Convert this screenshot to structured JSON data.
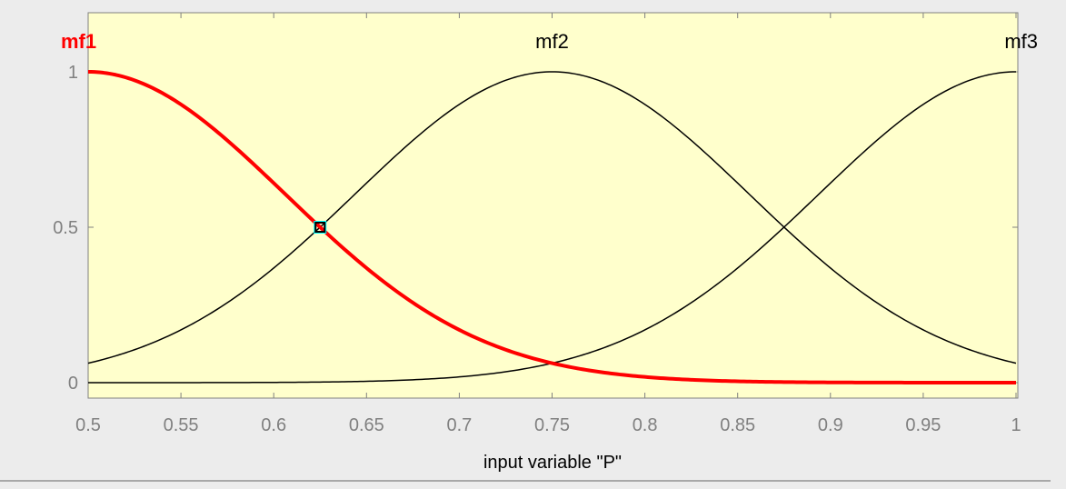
{
  "chart_data": {
    "type": "line",
    "xlabel": "input variable \"P\"",
    "xlim": [
      0.5,
      1
    ],
    "ylim": [
      0,
      1
    ],
    "x_ticks": [
      "0.5",
      "0.55",
      "0.6",
      "0.65",
      "0.7",
      "0.75",
      "0.8",
      "0.85",
      "0.9",
      "0.95",
      "1"
    ],
    "y_ticks": [
      "0",
      "0.5",
      "1"
    ],
    "grid": false,
    "background_color": "#ffffcc",
    "series": [
      {
        "name": "mf1",
        "shape": "gaussian",
        "center": 0.5,
        "sigma": 0.1062,
        "x": [
          0.5,
          0.55,
          0.6,
          0.625,
          0.65,
          0.7,
          0.75,
          0.8,
          0.85,
          0.9,
          0.95,
          1.0
        ],
        "values": [
          1.0,
          0.895,
          0.641,
          0.5,
          0.369,
          0.171,
          0.0625,
          0.018,
          0.004,
          0.0008,
          0.0001,
          0.0
        ],
        "color": "#ff0000",
        "selected": true
      },
      {
        "name": "mf2",
        "shape": "gaussian",
        "center": 0.75,
        "sigma": 0.1062,
        "x": [
          0.5,
          0.55,
          0.6,
          0.625,
          0.65,
          0.7,
          0.75,
          0.8,
          0.85,
          0.9,
          0.95,
          1.0
        ],
        "values": [
          0.0625,
          0.171,
          0.369,
          0.5,
          0.641,
          0.895,
          1.0,
          0.895,
          0.641,
          0.369,
          0.171,
          0.0625
        ],
        "color": "#000000",
        "selected": false
      },
      {
        "name": "mf3",
        "shape": "gaussian",
        "center": 1.0,
        "sigma": 0.1062,
        "x": [
          0.5,
          0.55,
          0.6,
          0.625,
          0.65,
          0.7,
          0.75,
          0.8,
          0.85,
          0.9,
          0.95,
          1.0
        ],
        "values": [
          0.0,
          0.0001,
          0.0008,
          0.0015,
          0.004,
          0.018,
          0.0625,
          0.171,
          0.369,
          0.641,
          0.895,
          1.0
        ],
        "color": "#000000",
        "selected": false
      }
    ],
    "marker": {
      "x": 0.625,
      "y": 0.5
    }
  },
  "colors": {
    "window_bg": "#ececec",
    "axis": "#808080",
    "tick_text": "#808080",
    "selected": "#ff0000",
    "curve": "#000000",
    "marker_fill": "#00ffff"
  }
}
